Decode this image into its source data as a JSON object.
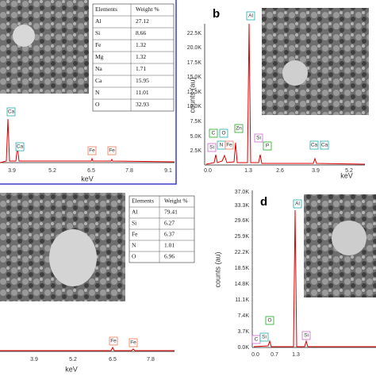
{
  "panels": [
    {
      "table": {
        "header": [
          "Elements",
          "Weight %"
        ],
        "rows": [
          [
            "Al",
            "27.12"
          ],
          [
            "Si",
            "8.66"
          ],
          [
            "Fe",
            "1.32"
          ],
          [
            "Mg",
            "1.32"
          ],
          [
            "Na",
            "1.71"
          ],
          [
            "Ca",
            "15.95"
          ],
          [
            "N",
            "11.01"
          ],
          [
            "O",
            "32.93"
          ]
        ]
      },
      "x_ticks": [
        "3.9",
        "5.2",
        "6.5",
        "7.8",
        "9.1"
      ],
      "x_label": "keV",
      "peaks": [
        "Ca",
        "Ca",
        "Fe",
        "Fe"
      ]
    },
    {
      "letter": "b",
      "y_label": "counts (au)",
      "y_ticks": [
        "22.5K",
        "20.0K",
        "17.5K",
        "15.0K",
        "12.5K",
        "10.0K",
        "7.5K",
        "5.0K",
        "2.5K"
      ],
      "x_ticks": [
        "0.0",
        "1.3",
        "2.6",
        "3.9",
        "5.2"
      ],
      "x_label": "keV",
      "peaks": [
        "Al",
        "Zn",
        "C",
        "O",
        "Si",
        "N",
        "Fe",
        "Si",
        "P",
        "Ca",
        "Ca"
      ]
    },
    {
      "table": {
        "header": [
          "Elements",
          "Weight %"
        ],
        "rows": [
          [
            "Al",
            "79.41"
          ],
          [
            "Si",
            "6.27"
          ],
          [
            "Fe",
            "6.37"
          ],
          [
            "N",
            "1.01"
          ],
          [
            "O",
            "6.96"
          ]
        ]
      },
      "x_ticks": [
        "3.9",
        "5.2",
        "6.5",
        "7.8"
      ],
      "x_label": "keV",
      "peaks": [
        "Fe",
        "Fe"
      ]
    },
    {
      "letter": "d",
      "y_label": "counts (au)",
      "y_ticks": [
        "37.0K",
        "33.3K",
        "29.6K",
        "25.9K",
        "22.2K",
        "18.5K",
        "14.8K",
        "11.1K",
        "7.4K",
        "3.7K",
        "0.0K"
      ],
      "x_ticks": [
        "0.0",
        "0.7",
        "1.3"
      ],
      "peaks": [
        "Al",
        "O",
        "C",
        "Si",
        "Si"
      ]
    }
  ]
}
